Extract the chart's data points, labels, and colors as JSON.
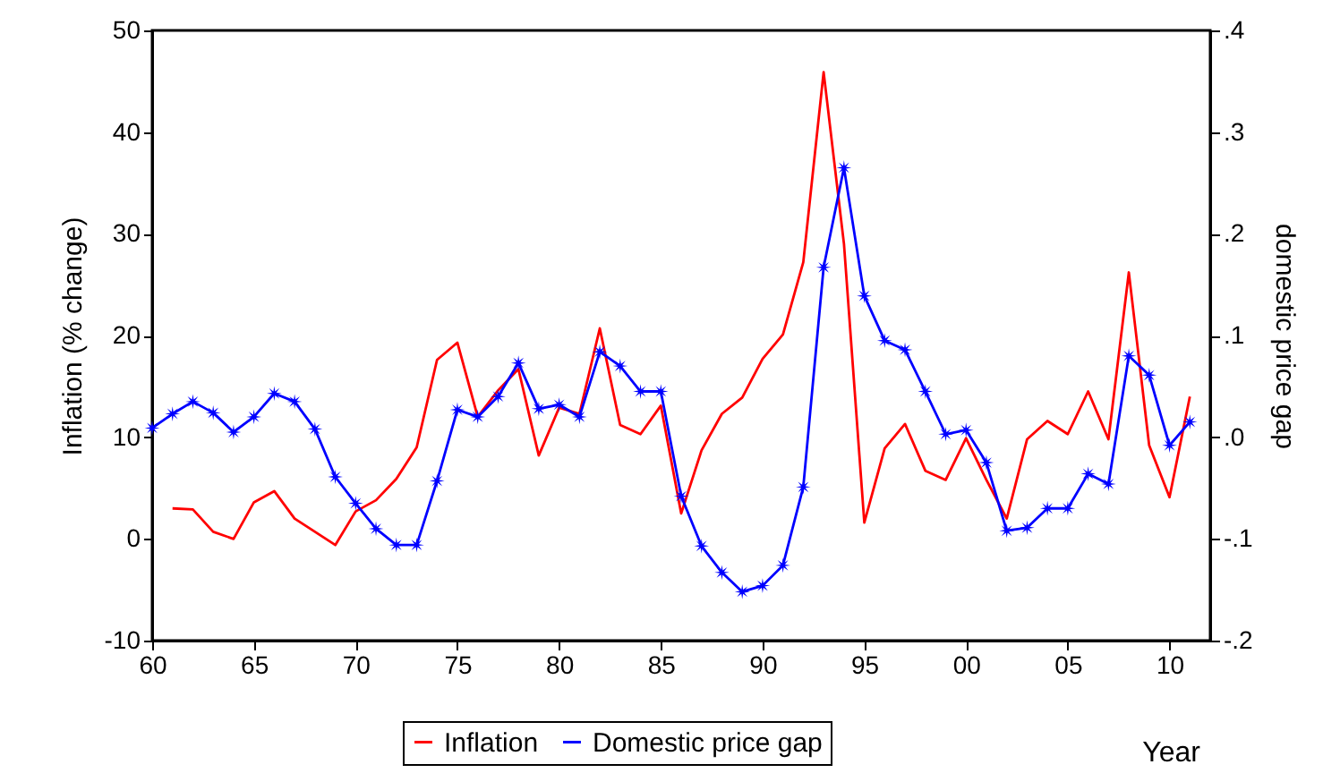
{
  "chart_data": {
    "type": "line",
    "xlabel": "Year",
    "ylabel": "Inflation (% change)",
    "y2label": "domestic price gap",
    "xlim": [
      1960,
      2012
    ],
    "xticks": [
      {
        "value": 1960,
        "label": "60"
      },
      {
        "value": 1965,
        "label": "65"
      },
      {
        "value": 1970,
        "label": "70"
      },
      {
        "value": 1975,
        "label": "75"
      },
      {
        "value": 1980,
        "label": "80"
      },
      {
        "value": 1985,
        "label": "85"
      },
      {
        "value": 1990,
        "label": "90"
      },
      {
        "value": 1995,
        "label": "95"
      },
      {
        "value": 2000,
        "label": "00"
      },
      {
        "value": 2005,
        "label": "05"
      },
      {
        "value": 2010,
        "label": "10"
      }
    ],
    "ylim": [
      -10,
      50
    ],
    "yticks": [
      -10,
      0,
      10,
      20,
      30,
      40,
      50
    ],
    "y2lim": [
      -0.2,
      0.4
    ],
    "y2ticks": [
      {
        "value": -0.2,
        "label": "-.2"
      },
      {
        "value": -0.1,
        "label": "-.1"
      },
      {
        "value": 0,
        "label": ".0"
      },
      {
        "value": 0.1,
        "label": ".1"
      },
      {
        "value": 0.2,
        "label": ".2"
      },
      {
        "value": 0.3,
        "label": ".3"
      },
      {
        "value": 0.4,
        "label": ".4"
      }
    ],
    "grid": false,
    "legend": "bottom",
    "series": [
      {
        "name": "Inflation",
        "color": "#ff0000",
        "marker": "none",
        "x": [
          1961,
          1962,
          1963,
          1964,
          1965,
          1966,
          1967,
          1968,
          1969,
          1970,
          1971,
          1972,
          1973,
          1974,
          1975,
          1976,
          1977,
          1978,
          1979,
          1980,
          1981,
          1982,
          1983,
          1984,
          1985,
          1986,
          1987,
          1988,
          1989,
          1990,
          1991,
          1992,
          1993,
          1994,
          1995,
          1996,
          1997,
          1998,
          1999,
          2000,
          2001,
          2002,
          2003,
          2004,
          2005,
          2006,
          2007,
          2008,
          2009,
          2010,
          2011
        ],
        "values": [
          3.0,
          2.9,
          0.7,
          0.0,
          3.6,
          4.7,
          2.0,
          0.7,
          -0.6,
          2.7,
          3.8,
          5.9,
          9.0,
          17.6,
          19.3,
          12.0,
          14.6,
          16.7,
          8.2,
          12.9,
          12.3,
          20.7,
          11.2,
          10.3,
          13.1,
          2.5,
          8.7,
          12.3,
          13.9,
          17.7,
          20.1,
          27.2,
          45.9,
          29.0,
          1.6,
          8.9,
          11.3,
          6.7,
          5.8,
          9.9,
          5.8,
          2.0,
          9.8,
          11.6,
          10.3,
          14.5,
          9.8,
          26.2,
          9.2,
          4.1,
          14.0
        ]
      },
      {
        "name": "Domestic price gap",
        "color": "#0000ff",
        "marker": "star",
        "axis": "y2",
        "x": [
          1960,
          1961,
          1962,
          1963,
          1964,
          1965,
          1966,
          1967,
          1968,
          1969,
          1970,
          1971,
          1972,
          1973,
          1974,
          1975,
          1976,
          1977,
          1978,
          1979,
          1980,
          1981,
          1982,
          1983,
          1984,
          1985,
          1986,
          1987,
          1988,
          1989,
          1990,
          1991,
          1992,
          1993,
          1994,
          1995,
          1996,
          1997,
          1998,
          1999,
          2000,
          2001,
          2002,
          2003,
          2004,
          2005,
          2006,
          2007,
          2008,
          2009,
          2010,
          2011
        ],
        "values": [
          0.009,
          0.023,
          0.035,
          0.024,
          0.005,
          0.02,
          0.043,
          0.035,
          0.008,
          -0.039,
          -0.065,
          -0.09,
          -0.106,
          -0.106,
          -0.043,
          0.027,
          0.02,
          0.04,
          0.073,
          0.028,
          0.032,
          0.02,
          0.084,
          0.07,
          0.045,
          0.045,
          -0.058,
          -0.107,
          -0.133,
          -0.152,
          -0.146,
          -0.126,
          -0.049,
          0.167,
          0.265,
          0.139,
          0.095,
          0.086,
          0.045,
          0.003,
          0.007,
          -0.025,
          -0.092,
          -0.089,
          -0.07,
          -0.07,
          -0.036,
          -0.046,
          0.08,
          0.061,
          -0.008,
          0.015
        ]
      }
    ]
  }
}
